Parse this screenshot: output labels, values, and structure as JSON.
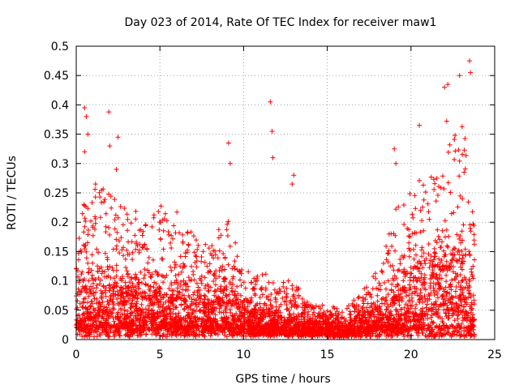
{
  "chart_data": {
    "type": "scatter",
    "title": "Day 023 of 2014, Rate Of TEC Index for receiver maw1",
    "xlabel": "GPS time / hours",
    "ylabel": "ROTI / TECUs",
    "xlim": [
      0,
      25
    ],
    "ylim": [
      0,
      0.5
    ],
    "xticks": [
      0,
      5,
      10,
      15,
      20,
      25
    ],
    "yticks": [
      0,
      0.05,
      0.1,
      0.15,
      0.2,
      0.25,
      0.3,
      0.35,
      0.4,
      0.45,
      0.5
    ],
    "xtick_labels": [
      "0",
      "5",
      "10",
      "15",
      "20",
      "25"
    ],
    "ytick_labels": [
      "0",
      "0.05",
      "0.1",
      "0.15",
      "0.2",
      "0.25",
      "0.3",
      "0.35",
      "0.4",
      "0.45",
      "0.5"
    ],
    "grid": true,
    "marker": "+",
    "series": [
      {
        "name": "ROTI",
        "color": "#ff0000",
        "envelope_profile": {
          "description": "approximate typical level and upper spread of dense scatter vs GPS hour",
          "hours": [
            0,
            1,
            2,
            3,
            4,
            5,
            6,
            7,
            8,
            9,
            10,
            11,
            12,
            13,
            14,
            15,
            16,
            17,
            18,
            19,
            20,
            21,
            22,
            23,
            23.8
          ],
          "typical": [
            0.06,
            0.09,
            0.08,
            0.07,
            0.07,
            0.07,
            0.07,
            0.06,
            0.06,
            0.06,
            0.05,
            0.035,
            0.03,
            0.03,
            0.025,
            0.025,
            0.02,
            0.03,
            0.04,
            0.06,
            0.08,
            0.1,
            0.12,
            0.12,
            0.06
          ],
          "upper": [
            0.2,
            0.27,
            0.25,
            0.22,
            0.22,
            0.24,
            0.22,
            0.18,
            0.16,
            0.22,
            0.12,
            0.12,
            0.1,
            0.1,
            0.06,
            0.06,
            0.05,
            0.08,
            0.12,
            0.22,
            0.26,
            0.3,
            0.38,
            0.4,
            0.2
          ]
        },
        "notable_points": [
          [
            0.5,
            0.395
          ],
          [
            0.6,
            0.38
          ],
          [
            0.7,
            0.35
          ],
          [
            0.5,
            0.32
          ],
          [
            1.95,
            0.388
          ],
          [
            2.0,
            0.33
          ],
          [
            2.5,
            0.345
          ],
          [
            2.4,
            0.29
          ],
          [
            9.1,
            0.335
          ],
          [
            9.2,
            0.3
          ],
          [
            11.6,
            0.405
          ],
          [
            11.7,
            0.355
          ],
          [
            11.75,
            0.31
          ],
          [
            13.0,
            0.28
          ],
          [
            12.9,
            0.265
          ],
          [
            19.0,
            0.325
          ],
          [
            19.1,
            0.3
          ],
          [
            20.5,
            0.365
          ],
          [
            22.0,
            0.43
          ],
          [
            22.2,
            0.435
          ],
          [
            22.9,
            0.45
          ],
          [
            23.5,
            0.475
          ],
          [
            23.55,
            0.455
          ]
        ]
      }
    ]
  }
}
